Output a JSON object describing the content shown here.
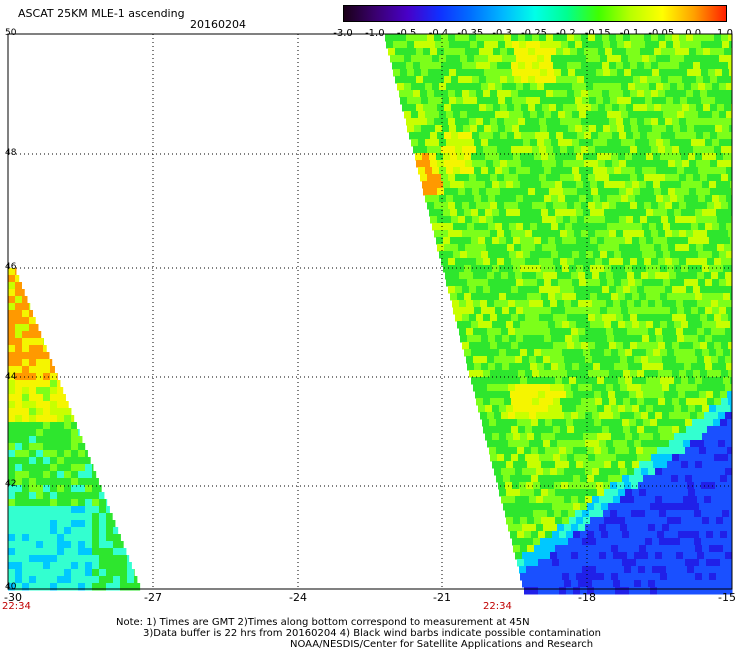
{
  "header": {
    "title": "ASCAT 25KM MLE-1 ascending",
    "date": "20160204"
  },
  "colorbar": {
    "labels": [
      "-3.0",
      "-1.0",
      "-0.5",
      "-0.4",
      "-0.35",
      "-0.3",
      "-0.25",
      "-0.2",
      "-0.15",
      "-0.1",
      "-0.05",
      "0.0",
      "1.0"
    ],
    "colors": [
      "#1a0018",
      "#3a0070",
      "#4800c8",
      "#1030ff",
      "#0070ff",
      "#00b8ff",
      "#00ffe8",
      "#00ff90",
      "#40ff00",
      "#b8ff00",
      "#ffff00",
      "#ffa000",
      "#ff2000"
    ]
  },
  "map": {
    "lat_labels": [
      "50",
      "48",
      "46",
      "44",
      "42",
      "40"
    ],
    "lon_labels": [
      "-30",
      "-27",
      "-24",
      "-21",
      "-18",
      "-15"
    ],
    "time_labels": [
      "22:34",
      "22:34"
    ],
    "colors": {
      "green": "#2ee62e",
      "light_green": "#7cff1a",
      "yellow_green": "#c8ff00",
      "yellow": "#f5f500",
      "orange": "#ff9900",
      "cyan": "#33ffd0",
      "light_blue": "#00c8ff",
      "blue": "#1a50ff",
      "deep_blue": "#2020e8"
    }
  },
  "footer": {
    "line1": "Note: 1) Times are GMT 2)Times along bottom correspond to measurement at 45N",
    "line2": "3)Data buffer is 22 hrs from 20160204 4) Black wind barbs indicate possible contamination",
    "line3": "NOAA/NESDIS/Center for Satellite Applications and Research"
  }
}
